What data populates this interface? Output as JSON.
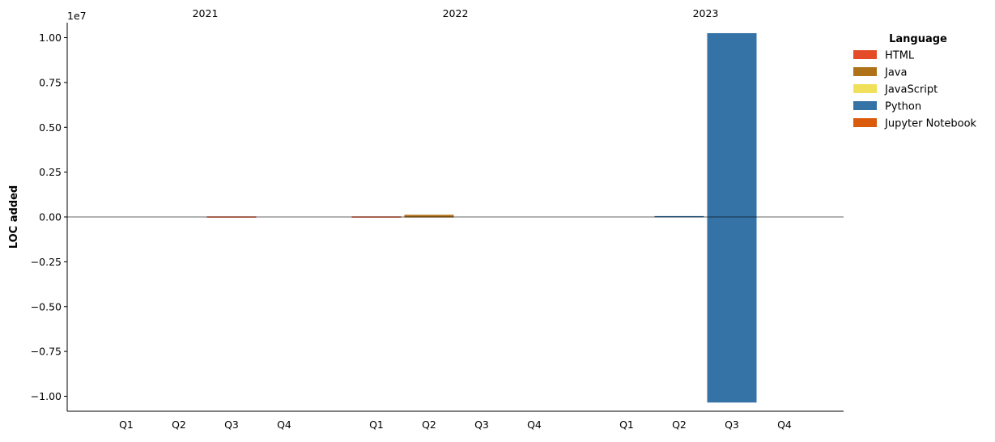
{
  "chart_data": {
    "type": "bar",
    "ylabel": "LOC added",
    "y_offset_text": "1e7",
    "ylim": [
      -10800000.0,
      10800000.0
    ],
    "yticks": [
      -1.0,
      -0.75,
      -0.5,
      -0.25,
      0.0,
      0.25,
      0.5,
      0.75,
      1.0
    ],
    "ytick_labels": [
      "−1.00",
      "−0.75",
      "−0.50",
      "−0.25",
      "0.00",
      "0.25",
      "0.50",
      "0.75",
      "1.00"
    ],
    "years": [
      "2021",
      "2022",
      "2023"
    ],
    "quarters": [
      "Q1",
      "Q2",
      "Q3",
      "Q4"
    ],
    "legend": {
      "title": "Language",
      "placement": "outside-right-top",
      "items": [
        {
          "name": "HTML",
          "color": "#e34c26"
        },
        {
          "name": "Java",
          "color": "#b07219"
        },
        {
          "name": "JavaScript",
          "color": "#f1e05a"
        },
        {
          "name": "Python",
          "color": "#3572A5"
        },
        {
          "name": "Jupyter Notebook",
          "color": "#DA5B0B"
        }
      ]
    },
    "bars": [
      {
        "year": "2021",
        "quarter": "Q3",
        "language": "HTML",
        "added": 30000,
        "removed": -20000
      },
      {
        "year": "2022",
        "quarter": "Q1",
        "language": "HTML",
        "added": 30000,
        "removed": -20000
      },
      {
        "year": "2022",
        "quarter": "Q2",
        "language": "Java",
        "added": 120000,
        "removed": -30000
      },
      {
        "year": "2023",
        "quarter": "Q2",
        "language": "Python",
        "added": 50000,
        "removed": -20000
      },
      {
        "year": "2023",
        "quarter": "Q3",
        "language": "Python",
        "added": 10250000,
        "removed": -10350000
      }
    ]
  }
}
